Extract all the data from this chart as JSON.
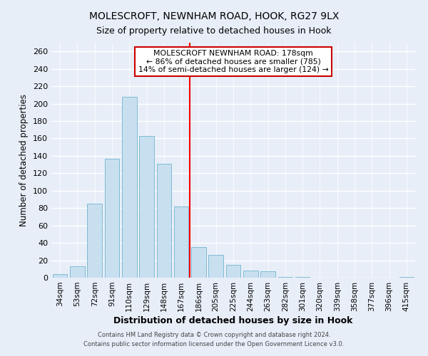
{
  "title": "MOLESCROFT, NEWNHAM ROAD, HOOK, RG27 9LX",
  "subtitle": "Size of property relative to detached houses in Hook",
  "xlabel": "Distribution of detached houses by size in Hook",
  "ylabel": "Number of detached properties",
  "bar_labels": [
    "34sqm",
    "53sqm",
    "72sqm",
    "91sqm",
    "110sqm",
    "129sqm",
    "148sqm",
    "167sqm",
    "186sqm",
    "205sqm",
    "225sqm",
    "244sqm",
    "263sqm",
    "282sqm",
    "301sqm",
    "320sqm",
    "339sqm",
    "358sqm",
    "377sqm",
    "396sqm",
    "415sqm"
  ],
  "bar_values": [
    4,
    13,
    85,
    137,
    208,
    163,
    131,
    82,
    35,
    26,
    15,
    8,
    7,
    1,
    1,
    0,
    0,
    0,
    0,
    0,
    1
  ],
  "bar_color": "#c8dff0",
  "bar_edge_color": "#7fbbd4",
  "vline_x": 7.5,
  "vline_color": "red",
  "annotation_title": "MOLESCROFT NEWNHAM ROAD: 178sqm",
  "annotation_line1": "← 86% of detached houses are smaller (785)",
  "annotation_line2": "14% of semi-detached houses are larger (124) →",
  "ylim": [
    0,
    270
  ],
  "ytick_step": 20,
  "footer1": "Contains HM Land Registry data © Crown copyright and database right 2024.",
  "footer2": "Contains public sector information licensed under the Open Government Licence v3.0.",
  "bg_color": "#e8eef8"
}
